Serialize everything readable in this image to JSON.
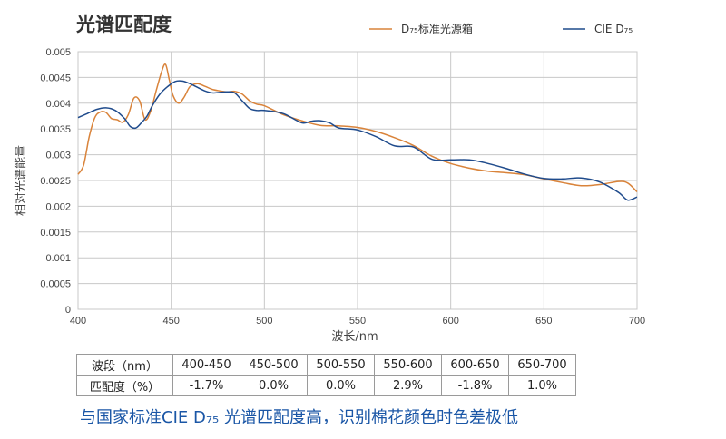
{
  "colors": {
    "standard": "#d9833a",
    "cie": "#1f4b8c",
    "grid": "#c8c8c8",
    "footer": "#1a56a6"
  },
  "chart_data": {
    "type": "line",
    "title": "光谱匹配度",
    "xlabel": "波长/nm",
    "ylabel": "相对光谱能量",
    "xlim": [
      400,
      700
    ],
    "ylim": [
      0,
      0.005
    ],
    "x_ticks": [
      "400",
      "450",
      "500",
      "550",
      "600",
      "650",
      "700"
    ],
    "y_ticks": [
      "0",
      "0.0005",
      "0.001",
      "0.0015",
      "0.002",
      "0.0025",
      "0.003",
      "0.0035",
      "0.004",
      "0.0045",
      "0.005"
    ],
    "grid": true,
    "legend_position": "top",
    "series": [
      {
        "name": "D₇₅标准光源箱",
        "color": "#d9833a",
        "x": [
          400,
          403,
          406,
          409,
          412,
          415,
          418,
          421,
          424,
          427,
          430,
          433,
          436,
          439,
          442,
          445,
          447,
          449,
          451,
          454,
          457,
          460,
          464,
          468,
          472,
          476,
          480,
          484,
          488,
          492,
          496,
          500,
          510,
          520,
          530,
          540,
          550,
          560,
          570,
          580,
          590,
          600,
          610,
          620,
          630,
          640,
          650,
          660,
          670,
          680,
          690,
          695,
          700
        ],
        "y": [
          0.00262,
          0.0028,
          0.00335,
          0.00372,
          0.00383,
          0.00382,
          0.0037,
          0.00368,
          0.00363,
          0.00378,
          0.0041,
          0.00405,
          0.00368,
          0.00385,
          0.00425,
          0.00463,
          0.00475,
          0.00445,
          0.00415,
          0.004,
          0.00412,
          0.00432,
          0.00438,
          0.00433,
          0.00427,
          0.00424,
          0.00422,
          0.00423,
          0.00418,
          0.00405,
          0.00398,
          0.00395,
          0.00378,
          0.00366,
          0.00357,
          0.00356,
          0.00353,
          0.00345,
          0.00333,
          0.00318,
          0.00297,
          0.00283,
          0.00274,
          0.00268,
          0.00265,
          0.00261,
          0.00253,
          0.00246,
          0.0024,
          0.00242,
          0.00248,
          0.00245,
          0.00228
        ]
      },
      {
        "name": "CIE D₇₅",
        "color": "#1f4b8c",
        "x": [
          400,
          405,
          410,
          415,
          420,
          425,
          428,
          431,
          434,
          437,
          440,
          444,
          448,
          452,
          456,
          460,
          464,
          468,
          472,
          476,
          480,
          484,
          488,
          492,
          496,
          500,
          510,
          520,
          525,
          530,
          535,
          540,
          550,
          560,
          570,
          580,
          590,
          600,
          610,
          620,
          630,
          640,
          650,
          660,
          670,
          680,
          690,
          695,
          700
        ],
        "y": [
          0.00372,
          0.0038,
          0.00388,
          0.00391,
          0.00386,
          0.0037,
          0.00355,
          0.00352,
          0.00362,
          0.00375,
          0.00396,
          0.00418,
          0.00432,
          0.00442,
          0.00443,
          0.00438,
          0.00431,
          0.00424,
          0.0042,
          0.00421,
          0.00422,
          0.0042,
          0.00405,
          0.0039,
          0.00386,
          0.00386,
          0.0038,
          0.00362,
          0.00365,
          0.00366,
          0.00362,
          0.00352,
          0.00348,
          0.00335,
          0.00317,
          0.00315,
          0.00291,
          0.0029,
          0.0029,
          0.00283,
          0.00273,
          0.00262,
          0.00254,
          0.00253,
          0.00255,
          0.00247,
          0.00227,
          0.00212,
          0.00218
        ]
      }
    ]
  },
  "table": {
    "headers": [
      "波段（nm）",
      "400-450",
      "450-500",
      "500-550",
      "550-600",
      "600-650",
      "650-700"
    ],
    "row": [
      "匹配度（%）",
      "-1.7%",
      "0.0%",
      "0.0%",
      "2.9%",
      "-1.8%",
      "1.0%"
    ]
  },
  "footer_note": "与国家标准CIE D₇₅ 光谱匹配度高，识别棉花颜色时色差极低"
}
